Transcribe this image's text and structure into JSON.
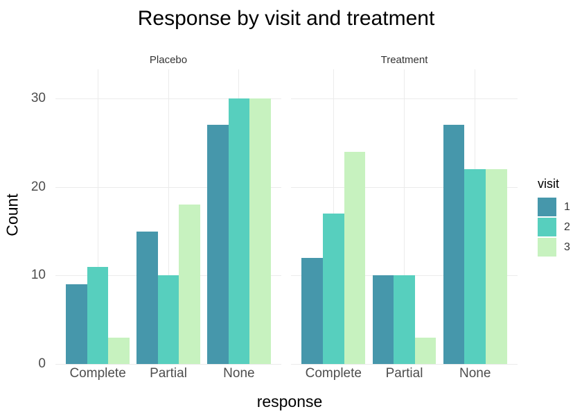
{
  "title": "Response by visit and treatment",
  "colors": {
    "visit1": "#4697ab",
    "visit2": "#57cfbe",
    "visit3": "#c7f2bf",
    "gridline": "#ebebeb",
    "tick_text": "#4d4d4d",
    "title_text": "#000000",
    "strip_text": "#333333",
    "background": "#ffffff"
  },
  "legend": {
    "title": "visit",
    "entries": [
      {
        "label": "1",
        "color": "#4697ab"
      },
      {
        "label": "2",
        "color": "#57cfbe"
      },
      {
        "label": "3",
        "color": "#c7f2bf"
      }
    ]
  },
  "chart_data": {
    "type": "bar",
    "title": "Response by visit and treatment",
    "xlabel": "response",
    "ylabel": "Count",
    "categories": [
      "Complete",
      "Partial",
      "None"
    ],
    "facets": [
      {
        "label": "Placebo",
        "series": [
          {
            "name": "1",
            "values": [
              9,
              15,
              27
            ]
          },
          {
            "name": "2",
            "values": [
              11,
              10,
              30
            ]
          },
          {
            "name": "3",
            "values": [
              3,
              18,
              30
            ]
          }
        ]
      },
      {
        "label": "Treatment",
        "series": [
          {
            "name": "1",
            "values": [
              12,
              10,
              27
            ]
          },
          {
            "name": "2",
            "values": [
              17,
              10,
              22
            ]
          },
          {
            "name": "3",
            "values": [
              24,
              3,
              22
            ]
          }
        ]
      }
    ],
    "series_colors": [
      "#4697ab",
      "#57cfbe",
      "#c7f2bf"
    ],
    "ylim": [
      0,
      30
    ],
    "yticks": [
      0,
      10,
      20,
      30
    ],
    "legend_title": "visit",
    "legend_position": "right",
    "grid": true,
    "bar_mode": "dodge"
  }
}
